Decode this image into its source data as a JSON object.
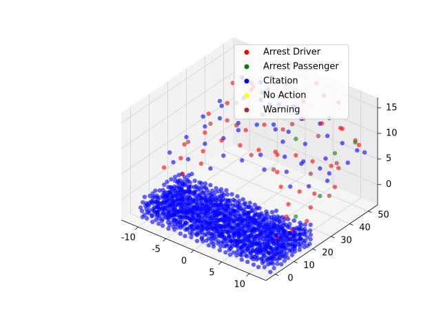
{
  "chart_data": {
    "type": "scatter3d",
    "title": "",
    "xlabel": "",
    "ylabel": "",
    "zlabel": "",
    "xlim": [
      -13,
      13
    ],
    "ylim": [
      -5,
      55
    ],
    "zlim": [
      -4,
      17
    ],
    "x_ticks": [
      "-10",
      "-5",
      "0",
      "5",
      "10"
    ],
    "x_tick_values": [
      -10,
      -5,
      0,
      5,
      10
    ],
    "y_ticks": [
      "0",
      "10",
      "20",
      "30",
      "40",
      "50"
    ],
    "y_tick_values": [
      0,
      10,
      20,
      30,
      40,
      50
    ],
    "z_ticks": [
      "0",
      "5",
      "10",
      "15"
    ],
    "z_tick_values": [
      0,
      5,
      10,
      15
    ],
    "grid": true,
    "legend_position": "top-right",
    "series": [
      {
        "name": "Arrest Driver",
        "color": "#ff0000",
        "points": [
          [
            -8,
            40,
            14
          ],
          [
            -6,
            45,
            13
          ],
          [
            -4,
            38,
            15
          ],
          [
            -2,
            50,
            12
          ],
          [
            0,
            44,
            14
          ],
          [
            2,
            48,
            13
          ],
          [
            4,
            42,
            12
          ],
          [
            6,
            46,
            11
          ],
          [
            8,
            50,
            10
          ],
          [
            10,
            52,
            8
          ],
          [
            -9,
            30,
            10
          ],
          [
            -7,
            34,
            12
          ],
          [
            -5,
            28,
            11
          ],
          [
            -3,
            32,
            9
          ],
          [
            -1,
            36,
            10
          ],
          [
            1,
            40,
            9
          ],
          [
            3,
            30,
            8
          ],
          [
            5,
            35,
            7
          ],
          [
            7,
            38,
            6
          ],
          [
            9,
            42,
            5
          ],
          [
            10,
            30,
            3
          ],
          [
            11,
            25,
            2
          ],
          [
            12,
            20,
            1
          ],
          [
            9,
            18,
            1
          ],
          [
            8,
            22,
            2
          ],
          [
            -10,
            20,
            6
          ],
          [
            -8,
            25,
            8
          ],
          [
            -6,
            18,
            7
          ],
          [
            -4,
            22,
            9
          ],
          [
            -2,
            26,
            8
          ],
          [
            0,
            30,
            7
          ],
          [
            2,
            34,
            6
          ],
          [
            4,
            28,
            5
          ],
          [
            6,
            24,
            4
          ],
          [
            8,
            28,
            3
          ],
          [
            -11,
            12,
            3
          ],
          [
            -9,
            15,
            5
          ],
          [
            -7,
            10,
            4
          ],
          [
            -5,
            14,
            6
          ],
          [
            11,
            40,
            6
          ],
          [
            12,
            48,
            9
          ],
          [
            10,
            45,
            12
          ],
          [
            7,
            52,
            14
          ],
          [
            5,
            50,
            15
          ],
          [
            3,
            52,
            16
          ],
          [
            -1,
            48,
            15
          ],
          [
            -3,
            46,
            16
          ],
          [
            12,
            35,
            4
          ],
          [
            11,
            15,
            0
          ],
          [
            10,
            10,
            -1
          ]
        ]
      },
      {
        "name": "Arrest Passenger",
        "color": "#008000",
        "points": [
          [
            -3,
            44,
            14
          ],
          [
            6,
            50,
            11
          ],
          [
            9,
            44,
            7
          ],
          [
            11,
            30,
            3
          ],
          [
            12,
            46,
            10
          ],
          [
            4,
            38,
            9
          ],
          [
            -6,
            36,
            12
          ],
          [
            10,
            20,
            1
          ]
        ]
      },
      {
        "name": "Citation",
        "color": "#0000ff",
        "points": [
          [
            -7,
            42,
            15
          ],
          [
            -5,
            46,
            14
          ],
          [
            -3,
            40,
            13
          ],
          [
            -1,
            44,
            12
          ],
          [
            1,
            46,
            12
          ],
          [
            3,
            44,
            11
          ],
          [
            5,
            48,
            10
          ],
          [
            7,
            46,
            9
          ],
          [
            9,
            48,
            8
          ],
          [
            11,
            50,
            7
          ],
          [
            -9,
            36,
            11
          ],
          [
            -7,
            30,
            10
          ],
          [
            -5,
            34,
            9
          ],
          [
            -3,
            28,
            10
          ],
          [
            -1,
            32,
            11
          ],
          [
            1,
            36,
            10
          ],
          [
            3,
            34,
            9
          ],
          [
            5,
            40,
            8
          ],
          [
            7,
            32,
            7
          ],
          [
            9,
            36,
            6
          ],
          [
            -11,
            24,
            6
          ],
          [
            -9,
            28,
            8
          ],
          [
            -7,
            22,
            7
          ],
          [
            -5,
            26,
            8
          ],
          [
            -3,
            20,
            7
          ],
          [
            -1,
            24,
            6
          ],
          [
            1,
            28,
            7
          ],
          [
            3,
            24,
            6
          ],
          [
            5,
            30,
            5
          ],
          [
            7,
            26,
            4
          ],
          [
            9,
            30,
            4
          ],
          [
            11,
            34,
            5
          ],
          [
            12,
            42,
            7
          ],
          [
            10,
            38,
            5
          ],
          [
            8,
            42,
            6
          ],
          [
            6,
            36,
            6
          ],
          [
            4,
            32,
            7
          ],
          [
            2,
            40,
            9
          ],
          [
            0,
            38,
            10
          ],
          [
            -2,
            42,
            12
          ],
          [
            -4,
            44,
            13
          ],
          [
            -6,
            40,
            12
          ],
          [
            -8,
            34,
            11
          ],
          [
            -10,
            30,
            9
          ],
          [
            13,
            48,
            8
          ],
          [
            -12,
            18,
            4
          ],
          [
            -10,
            14,
            4
          ],
          [
            -8,
            16,
            5
          ],
          [
            -6,
            12,
            4
          ],
          [
            -4,
            16,
            5
          ]
        ]
      },
      {
        "name": "No Action",
        "color": "#ffff00",
        "points": []
      },
      {
        "name": "Warning",
        "color": "#a52a2a",
        "points": [
          [
            -6,
            44,
            14
          ],
          [
            -2,
            38,
            11
          ],
          [
            2,
            42,
            10
          ],
          [
            6,
            44,
            9
          ],
          [
            -8,
            28,
            9
          ],
          [
            4,
            26,
            6
          ],
          [
            8,
            34,
            5
          ],
          [
            -4,
            30,
            10
          ],
          [
            0,
            26,
            7
          ],
          [
            10,
            42,
            6
          ],
          [
            -10,
            22,
            6
          ],
          [
            12,
            32,
            3
          ]
        ]
      }
    ],
    "dense_block": {
      "series": "Citation",
      "x_range": [
        -11,
        12
      ],
      "y_range": [
        0,
        22
      ],
      "z_range": [
        -4,
        0
      ]
    }
  }
}
